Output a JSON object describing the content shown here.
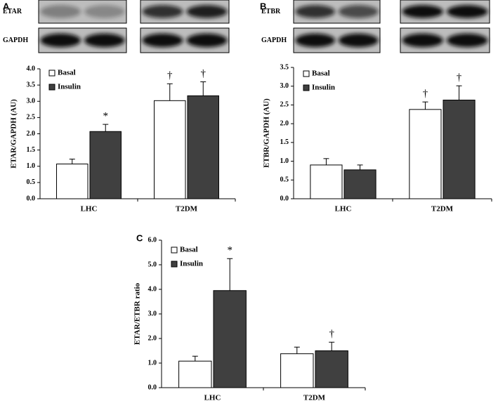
{
  "chart_data": [
    {
      "type": "bar",
      "panel": "A",
      "blots": [
        "ETAR",
        "GAPDH"
      ],
      "ylabel": "ETAR/GAPDH (AU)",
      "categories": [
        "LHC",
        "T2DM"
      ],
      "ylim": [
        0,
        4
      ],
      "yticks": [
        {
          "value": 0,
          "label": "0.0"
        },
        {
          "value": 0.5,
          "label": "0.5"
        },
        {
          "value": 1,
          "label": "1.0"
        },
        {
          "value": 1.5,
          "label": "1.5"
        },
        {
          "value": 2,
          "label": "2.0"
        },
        {
          "value": 2.5,
          "label": "2.5"
        },
        {
          "value": 3,
          "label": "3.0"
        },
        {
          "value": 3.5,
          "label": "3.5"
        },
        {
          "value": 4,
          "label": "4.0"
        }
      ],
      "series": [
        {
          "name": "Basal",
          "color": "#ffffff",
          "values": [
            1.07,
            3.02
          ],
          "errors": [
            0.15,
            0.52
          ],
          "sig": [
            null,
            "†"
          ]
        },
        {
          "name": "Insulin",
          "color": "#404040",
          "values": [
            2.07,
            3.17
          ],
          "errors": [
            0.22,
            0.43
          ],
          "sig": [
            "*",
            "†"
          ]
        }
      ]
    },
    {
      "type": "bar",
      "panel": "B",
      "blots": [
        "ETBR",
        "GAPDH"
      ],
      "ylabel": "ETBR/GAPDH (AU)",
      "categories": [
        "LHC",
        "T2DM"
      ],
      "ylim": [
        0,
        3.5
      ],
      "yticks": [
        {
          "value": 0,
          "label": "0.0"
        },
        {
          "value": 0.5,
          "label": "0.5"
        },
        {
          "value": 1,
          "label": "1.0"
        },
        {
          "value": 1.5,
          "label": "1.5"
        },
        {
          "value": 2,
          "label": "2.0"
        },
        {
          "value": 2.5,
          "label": "2.5"
        },
        {
          "value": 3,
          "label": "3.0"
        },
        {
          "value": 3.5,
          "label": "3.5"
        }
      ],
      "series": [
        {
          "name": "Basal",
          "color": "#ffffff",
          "values": [
            0.9,
            2.38
          ],
          "errors": [
            0.17,
            0.2
          ],
          "sig": [
            null,
            "†"
          ]
        },
        {
          "name": "Insulin",
          "color": "#404040",
          "values": [
            0.77,
            2.63
          ],
          "errors": [
            0.13,
            0.38
          ],
          "sig": [
            null,
            "†"
          ]
        }
      ]
    },
    {
      "type": "bar",
      "panel": "C",
      "ylabel": "ETAR/ETBR ratio",
      "categories": [
        "LHC",
        "T2DM"
      ],
      "ylim": [
        0,
        6
      ],
      "yticks": [
        {
          "value": 0,
          "label": "0.0"
        },
        {
          "value": 1,
          "label": "1.0"
        },
        {
          "value": 2,
          "label": "2.0"
        },
        {
          "value": 3,
          "label": "3.0"
        },
        {
          "value": 4,
          "label": "4.0"
        },
        {
          "value": 5,
          "label": "5.0"
        },
        {
          "value": 6,
          "label": "6.0"
        }
      ],
      "series": [
        {
          "name": "Basal",
          "color": "#ffffff",
          "values": [
            1.08,
            1.38
          ],
          "errors": [
            0.2,
            0.27
          ],
          "sig": [
            null,
            null
          ]
        },
        {
          "name": "Insulin",
          "color": "#404040",
          "values": [
            3.95,
            1.5
          ],
          "errors": [
            1.3,
            0.35
          ],
          "sig": [
            "*",
            "†"
          ]
        }
      ]
    }
  ]
}
